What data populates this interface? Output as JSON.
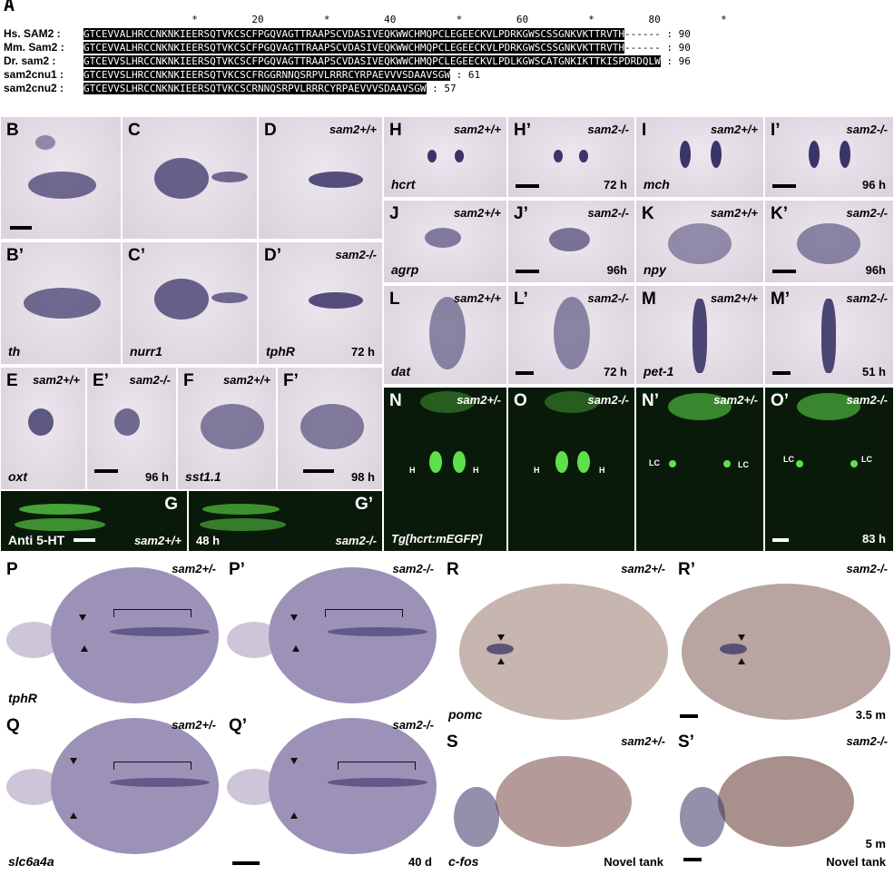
{
  "alignment": {
    "panel_label": "A",
    "ruler": "                  *         20          *         40          *         60          *         80          *",
    "rows": [
      {
        "label": "Hs. SAM2 :",
        "seq": "GTCEVVALHRCCNKNKIEERSQTVKCSCFPGQVAGTTRAAPSCVDASIVEQKWWCHMQPCLEGEECKVLPDRKGWSCSSGNKVKTTRVTH",
        "tail": "------ : 90"
      },
      {
        "label": "Mm. Sam2 :",
        "seq": "GTCEVVALHRCCNKNKIEERSQTVKCSCFPGQVAGTTRAAPSCVDASIVEQKWWCHMQPCLEGEECKVLPDRKGWSCSSGNKVKTTRVTH",
        "tail": "------ : 90"
      },
      {
        "label": "Dr. sam2 :",
        "seq": "GTCEVVSLHRCCNKNKIEERSQTVKCSCFPGQVAGTTRAAPSCVDASIVEQKWWCHMQPCLEGEECKVLPDLKGWSCATGNKIKTTKISPDRDQLW",
        "tail": " : 96"
      },
      {
        "label": "sam2cnu1 :",
        "seq": "GTCEVVSLHRCCNKNKIEERSQTVKCSCFRGGRNNQSRPVLRRRCYRPAEVVVSDAAVSGW",
        "tail": " : 61"
      },
      {
        "label": "sam2cnu2 :",
        "seq": "GTCEVVSLHRCCNKNKIEERSQTVKCSCRNNQSRPVLRRRCYRPAEVVVSDAAVSGW",
        "tail": " : 57"
      }
    ]
  },
  "panels": {
    "B": {
      "label": "B",
      "scale": true
    },
    "B1": {
      "label": "B’",
      "gene": "th"
    },
    "C": {
      "label": "C"
    },
    "C1": {
      "label": "C’",
      "gene": "nurr1"
    },
    "D": {
      "label": "D",
      "genotype": "sam2+/+"
    },
    "D1": {
      "label": "D’",
      "genotype": "sam2-/-",
      "gene": "tphR",
      "time": "72 h"
    },
    "E": {
      "label": "E",
      "genotype": "sam2+/+",
      "gene": "oxt"
    },
    "E1": {
      "label": "E’",
      "genotype": "sam2-/-",
      "time": "96 h"
    },
    "F": {
      "label": "F",
      "genotype": "sam2+/+",
      "gene": "sst1.1"
    },
    "F1": {
      "label": "F’",
      "genotype": "",
      "time": "98 h"
    },
    "G": {
      "label": "G",
      "genotype": "sam2+/+",
      "gene": "Anti 5-HT"
    },
    "G1": {
      "label": "G’",
      "genotype": "sam2-/-",
      "time": "48 h"
    },
    "H": {
      "label": "H",
      "genotype": "sam2+/+",
      "gene": "hcrt"
    },
    "H1": {
      "label": "H’",
      "genotype": "sam2-/-",
      "time": "72 h"
    },
    "I": {
      "label": "I",
      "genotype": "sam2+/+",
      "gene": "mch"
    },
    "I1": {
      "label": "I’",
      "genotype": "sam2-/-",
      "time": "96 h"
    },
    "J": {
      "label": "J",
      "genotype": "sam2+/+",
      "gene": "agrp"
    },
    "J1": {
      "label": "J’",
      "genotype": "sam2-/-",
      "time": "96h"
    },
    "K": {
      "label": "K",
      "genotype": "sam2+/+",
      "gene": "npy"
    },
    "K1": {
      "label": "K’",
      "genotype": "sam2-/-",
      "time": "96h"
    },
    "L": {
      "label": "L",
      "genotype": "sam2+/+",
      "gene": "dat"
    },
    "L1": {
      "label": "L’",
      "genotype": "sam2-/-",
      "time": "72 h"
    },
    "M": {
      "label": "M",
      "genotype": "sam2+/+",
      "gene": "pet-1"
    },
    "M1": {
      "label": "M’",
      "genotype": "sam2-/-",
      "time": "51 h"
    },
    "N": {
      "label": "N",
      "genotype": "sam2+/-",
      "gene": "Tg[hcrt:mEGFP]",
      "tag": "H"
    },
    "O": {
      "label": "O",
      "genotype": "sam2-/-",
      "tag": "H"
    },
    "N1": {
      "label": "N’",
      "genotype": "sam2+/-",
      "tag": "LC"
    },
    "O1": {
      "label": "O’",
      "genotype": "sam2-/-",
      "tag": "LC",
      "time": "83 h"
    },
    "P": {
      "label": "P",
      "genotype": "sam2+/-",
      "gene": "tphR"
    },
    "P1": {
      "label": "P’",
      "genotype": "sam2-/-"
    },
    "Q": {
      "label": "Q",
      "genotype": "sam2+/-",
      "gene": "slc6a4a"
    },
    "Q1": {
      "label": "Q’",
      "genotype": "sam2-/-",
      "time": "40 d"
    },
    "R": {
      "label": "R",
      "genotype": "sam2+/-",
      "gene": "pomc"
    },
    "R1": {
      "label": "R’",
      "genotype": "sam2-/-",
      "time": "3.5 m"
    },
    "S": {
      "label": "S",
      "genotype": "sam2+/-",
      "gene": "c-fos",
      "note": "Novel tank"
    },
    "S1": {
      "label": "S’",
      "genotype": "sam2-/-",
      "time": "5 m",
      "note": "Novel tank"
    }
  }
}
